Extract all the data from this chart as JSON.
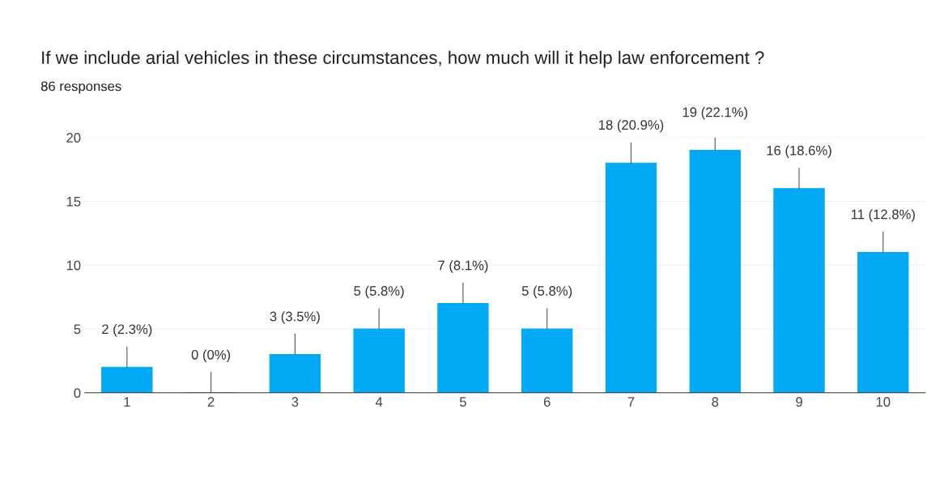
{
  "chart_data": {
    "type": "bar",
    "title": "If we include arial vehicles in these circumstances, how much will it help law enforcement ?",
    "subtitle": "86 responses",
    "categories": [
      "1",
      "2",
      "3",
      "4",
      "5",
      "6",
      "7",
      "8",
      "9",
      "10"
    ],
    "values": [
      2,
      0,
      3,
      5,
      7,
      5,
      18,
      19,
      16,
      11
    ],
    "value_labels": [
      "2 (2.3%)",
      "0 (0%)",
      "3 (3.5%)",
      "5 (5.8%)",
      "7 (8.1%)",
      "5 (5.8%)",
      "18 (20.9%)",
      "19 (22.1%)",
      "16 (18.6%)",
      "11 (12.8%)"
    ],
    "color": "#03a9f4",
    "ylim": [
      0,
      20
    ],
    "yticks": [
      0,
      5,
      10,
      15,
      20
    ],
    "grid": "y",
    "legend": false
  }
}
